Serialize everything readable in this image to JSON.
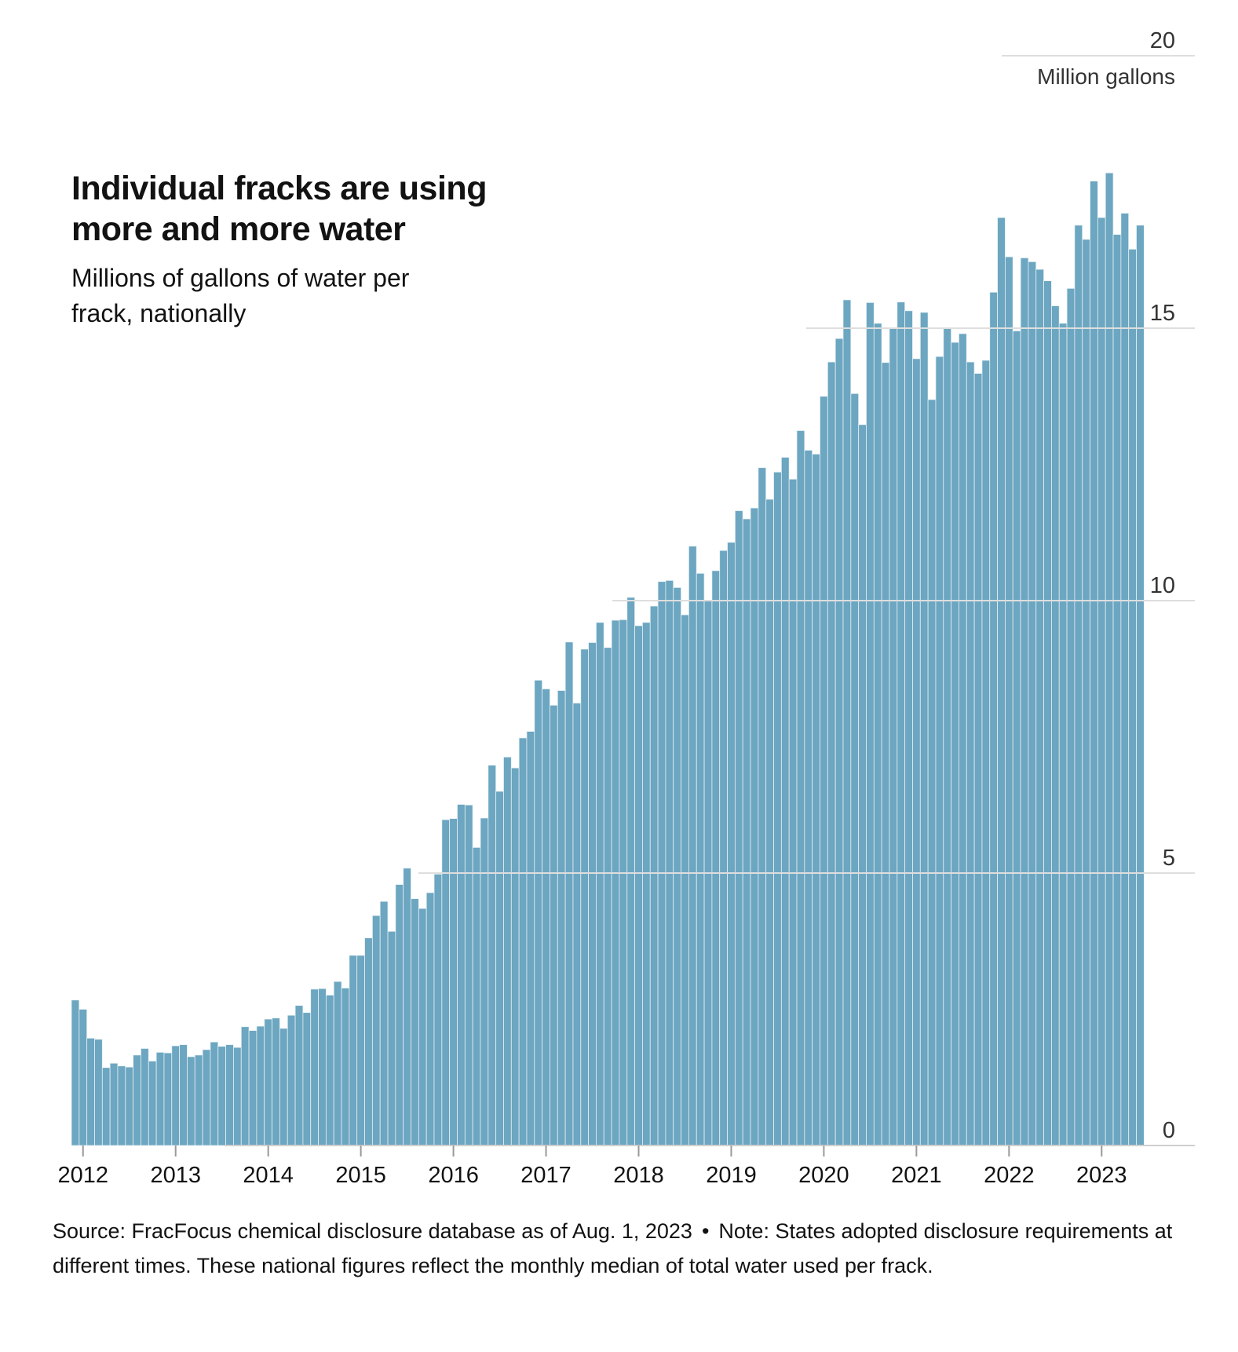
{
  "header": {
    "title": "Individual fracks are using more and more water",
    "subtitle": "Millions of gallons of water per frack, nationally"
  },
  "chart_data": {
    "type": "bar",
    "title": "Individual fracks are using more and more water",
    "subtitle": "Millions of gallons of water per frack, nationally",
    "ylabel": "Million gallons",
    "xlabel": "",
    "ylim": [
      0,
      20
    ],
    "y_ticks": [
      "0",
      "5",
      "10",
      "15",
      "20"
    ],
    "x_ticks": [
      "2012",
      "2013",
      "2014",
      "2015",
      "2016",
      "2017",
      "2018",
      "2019",
      "2020",
      "2021",
      "2022",
      "2023"
    ],
    "x_start": "2011-12",
    "x_interval": "month",
    "grid": true,
    "color": "#6ca6c1",
    "values": [
      2.67,
      2.5,
      1.97,
      1.95,
      1.43,
      1.51,
      1.46,
      1.44,
      1.66,
      1.78,
      1.55,
      1.71,
      1.7,
      1.83,
      1.85,
      1.63,
      1.66,
      1.76,
      1.9,
      1.82,
      1.85,
      1.8,
      2.18,
      2.11,
      2.19,
      2.32,
      2.34,
      2.15,
      2.39,
      2.57,
      2.44,
      2.87,
      2.88,
      2.76,
      3.01,
      2.89,
      3.49,
      3.49,
      3.81,
      4.22,
      4.48,
      3.93,
      4.79,
      5.09,
      4.53,
      4.35,
      4.64,
      4.98,
      5.98,
      6.0,
      6.26,
      6.25,
      5.47,
      6.01,
      6.98,
      6.5,
      7.13,
      6.93,
      7.48,
      7.6,
      8.54,
      8.38,
      8.08,
      8.35,
      9.24,
      8.12,
      9.11,
      9.23,
      9.6,
      9.14,
      9.64,
      9.65,
      10.06,
      9.54,
      9.6,
      9.9,
      10.35,
      10.37,
      10.24,
      9.74,
      11.0,
      10.5,
      10.0,
      10.55,
      10.92,
      11.07,
      11.65,
      11.5,
      11.7,
      12.44,
      11.86,
      12.36,
      12.63,
      12.23,
      13.12,
      12.76,
      12.69,
      13.75,
      14.38,
      14.81,
      15.52,
      13.8,
      13.23,
      15.47,
      15.09,
      14.37,
      15.0,
      15.48,
      15.32,
      14.44,
      15.29,
      13.69,
      14.48,
      15.0,
      14.74,
      14.9,
      14.38,
      14.17,
      14.41,
      15.66,
      17.03,
      16.31,
      14.95,
      16.29,
      16.22,
      16.08,
      15.87,
      15.41,
      15.09,
      15.73,
      16.89,
      16.63,
      17.7,
      17.03,
      17.85,
      16.72,
      17.11,
      16.45,
      16.89
    ]
  },
  "footer": {
    "source": "Source: FracFocus chemical disclosure database as of Aug. 1, 2023",
    "separator": "•",
    "note": "Note: States adopted disclosure requirements at different times. These national figures reflect the monthly median of total water used per frack."
  }
}
